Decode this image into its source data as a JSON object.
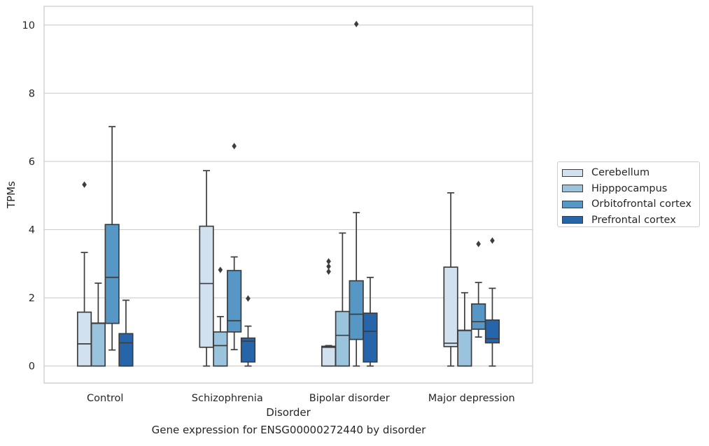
{
  "caption": "Gene expression for ENSG00000272440 by disorder",
  "chart_data": {
    "type": "boxplot",
    "title": "",
    "xlabel": "Disorder",
    "ylabel": "TPMs",
    "ylim": [
      -0.5,
      10.55
    ],
    "yticks": [
      0,
      2,
      4,
      6,
      8,
      10
    ],
    "grid": "horizontal",
    "legend_position": "right, outside",
    "categories": [
      "Control",
      "Schizophrenia",
      "Bipolar disorder",
      "Major depression"
    ],
    "series": [
      {
        "name": "Cerebellum",
        "color": "#d1e1f0",
        "boxes": [
          {
            "whislo": 0,
            "q1": 0,
            "med": 0.65,
            "q3": 1.58,
            "whishi": 3.33,
            "fliers": [
              5.32
            ]
          },
          {
            "whislo": 0,
            "q1": 0.55,
            "med": 2.42,
            "q3": 4.1,
            "whishi": 5.73,
            "fliers": []
          },
          {
            "whislo": 0,
            "q1": 0,
            "med": 0.55,
            "q3": 0.58,
            "whishi": 0.6,
            "fliers": [
              2.77,
              2.92,
              3.07
            ]
          },
          {
            "whislo": 0,
            "q1": 0.57,
            "med": 0.67,
            "q3": 2.9,
            "whishi": 5.08,
            "fliers": []
          }
        ]
      },
      {
        "name": "Hipppocampus",
        "color": "#9ac4dd",
        "boxes": [
          {
            "whislo": 0,
            "q1": 0,
            "med": 1.25,
            "q3": 1.26,
            "whishi": 2.43,
            "fliers": []
          },
          {
            "whislo": 0,
            "q1": 0,
            "med": 0.6,
            "q3": 1.0,
            "whishi": 1.45,
            "fliers": [
              2.82
            ]
          },
          {
            "whislo": 0,
            "q1": 0,
            "med": 0.9,
            "q3": 1.6,
            "whishi": 3.9,
            "fliers": []
          },
          {
            "whislo": 0,
            "q1": 0,
            "med": 1.04,
            "q3": 1.05,
            "whishi": 2.15,
            "fliers": []
          }
        ]
      },
      {
        "name": "Orbitofrontal cortex",
        "color": "#5797c5",
        "boxes": [
          {
            "whislo": 0.47,
            "q1": 1.25,
            "med": 2.6,
            "q3": 4.15,
            "whishi": 7.02,
            "fliers": []
          },
          {
            "whislo": 0.48,
            "q1": 1.0,
            "med": 1.33,
            "q3": 2.8,
            "whishi": 3.2,
            "fliers": [
              6.45
            ]
          },
          {
            "whislo": 0,
            "q1": 0.78,
            "med": 1.52,
            "q3": 2.5,
            "whishi": 4.5,
            "fliers": [
              10.03
            ]
          },
          {
            "whislo": 0.85,
            "q1": 1.08,
            "med": 1.3,
            "q3": 1.82,
            "whishi": 2.45,
            "fliers": [
              3.58
            ]
          }
        ]
      },
      {
        "name": "Prefrontal cortex",
        "color": "#2765ab",
        "boxes": [
          {
            "whislo": 0,
            "q1": 0,
            "med": 0.68,
            "q3": 0.95,
            "whishi": 1.93,
            "fliers": []
          },
          {
            "whislo": 0,
            "q1": 0.12,
            "med": 0.73,
            "q3": 0.82,
            "whishi": 1.17,
            "fliers": [
              1.98
            ]
          },
          {
            "whislo": 0,
            "q1": 0.12,
            "med": 1.02,
            "q3": 1.55,
            "whishi": 2.6,
            "fliers": []
          },
          {
            "whislo": 0,
            "q1": 0.68,
            "med": 0.8,
            "q3": 1.35,
            "whishi": 2.28,
            "fliers": [
              3.68
            ]
          }
        ]
      }
    ]
  }
}
